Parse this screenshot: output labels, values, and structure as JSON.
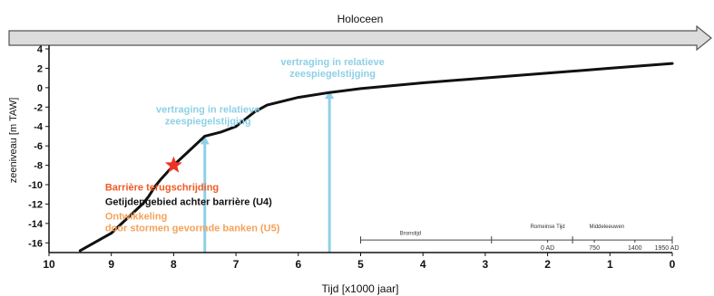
{
  "chart_data": {
    "type": "line",
    "title": "",
    "xlabel": "Tijd [x1000 jaar]",
    "ylabel": "zeeniveau [m TAW]",
    "xlim": [
      10,
      0
    ],
    "ylim": [
      -17,
      4
    ],
    "x_ticks": [
      10,
      9,
      8,
      7,
      6,
      5,
      4,
      3,
      2,
      1,
      0
    ],
    "y_ticks": [
      4,
      2,
      0,
      -2,
      -4,
      -6,
      -8,
      -10,
      -12,
      -14,
      -16
    ],
    "grid": false,
    "colors": {
      "curve": "#111111",
      "arrow": "#8ed0e6",
      "annotation_blue": "#8ed0e6",
      "annotation_red": "#ee5a24",
      "annotation_black": "#111111",
      "annotation_orange": "#f5a25a",
      "star": "#ee3322",
      "period_bar": "#dcdcdc"
    },
    "series": [
      {
        "x": [
          9.5,
          9.0,
          8.75,
          8.5,
          8.4,
          8.3,
          8.2,
          8.1,
          8.0,
          7.9,
          7.75,
          7.6,
          7.5,
          7.25,
          7.0,
          6.8,
          6.7,
          6.5,
          6.0,
          5.5,
          5.0,
          4.0,
          3.0,
          2.0,
          1.0,
          0.0
        ],
        "y": [
          -16.8,
          -15.0,
          -13.5,
          -12.0,
          -11.2,
          -10.2,
          -9.4,
          -8.7,
          -8.0,
          -7.4,
          -6.5,
          -5.6,
          -5.0,
          -4.6,
          -4.0,
          -3.0,
          -2.5,
          -1.8,
          -1.0,
          -0.5,
          -0.1,
          0.5,
          1.0,
          1.5,
          2.0,
          2.5
        ]
      }
    ],
    "period_bar": {
      "label": "Holoceen"
    },
    "marker": {
      "x": 8.0,
      "y": -8.0
    },
    "arrows": [
      {
        "x": 7.5,
        "y_from": -17.0,
        "y_to": -5.0
      },
      {
        "x": 5.5,
        "y_from": -17.0,
        "y_to": -0.3
      }
    ],
    "annotations": [
      {
        "lines": [
          "vertraging in relatieve",
          "zeespiegelstijging"
        ],
        "color": "annotation_blue",
        "x": 7.45,
        "y": -2.6
      },
      {
        "lines": [
          "vertraging in relatieve",
          "zeespiegelstijging"
        ],
        "color": "annotation_blue",
        "x": 5.45,
        "y": 2.3
      },
      {
        "lines": [
          "Barrière terugschrijding"
        ],
        "color": "annotation_red",
        "x": 9.1,
        "y": -10.6
      },
      {
        "lines": [
          "Getijdengebied achter barrière (U4)"
        ],
        "color": "annotation_black",
        "x": 9.1,
        "y": -12.1
      },
      {
        "lines": [
          "Ontwikkeling",
          "door stormen gevormde banken (U5)"
        ],
        "color": "annotation_orange",
        "x": 9.1,
        "y": -13.6
      }
    ],
    "era_labels": [
      {
        "text": "Bronstijd",
        "x": 4.2,
        "y": -15.2
      },
      {
        "text": "Romeinse Tijd",
        "x": 2.0,
        "y": -14.5
      },
      {
        "text": "Middeleeuwen",
        "x": 1.05,
        "y": -14.5
      }
    ],
    "era_ticks": [
      {
        "text": "0 AD",
        "x": 2.0
      },
      {
        "text": "750",
        "x": 1.25
      },
      {
        "text": "1400",
        "x": 0.6
      },
      {
        "text": "1950 AD",
        "x": 0.0
      }
    ]
  }
}
